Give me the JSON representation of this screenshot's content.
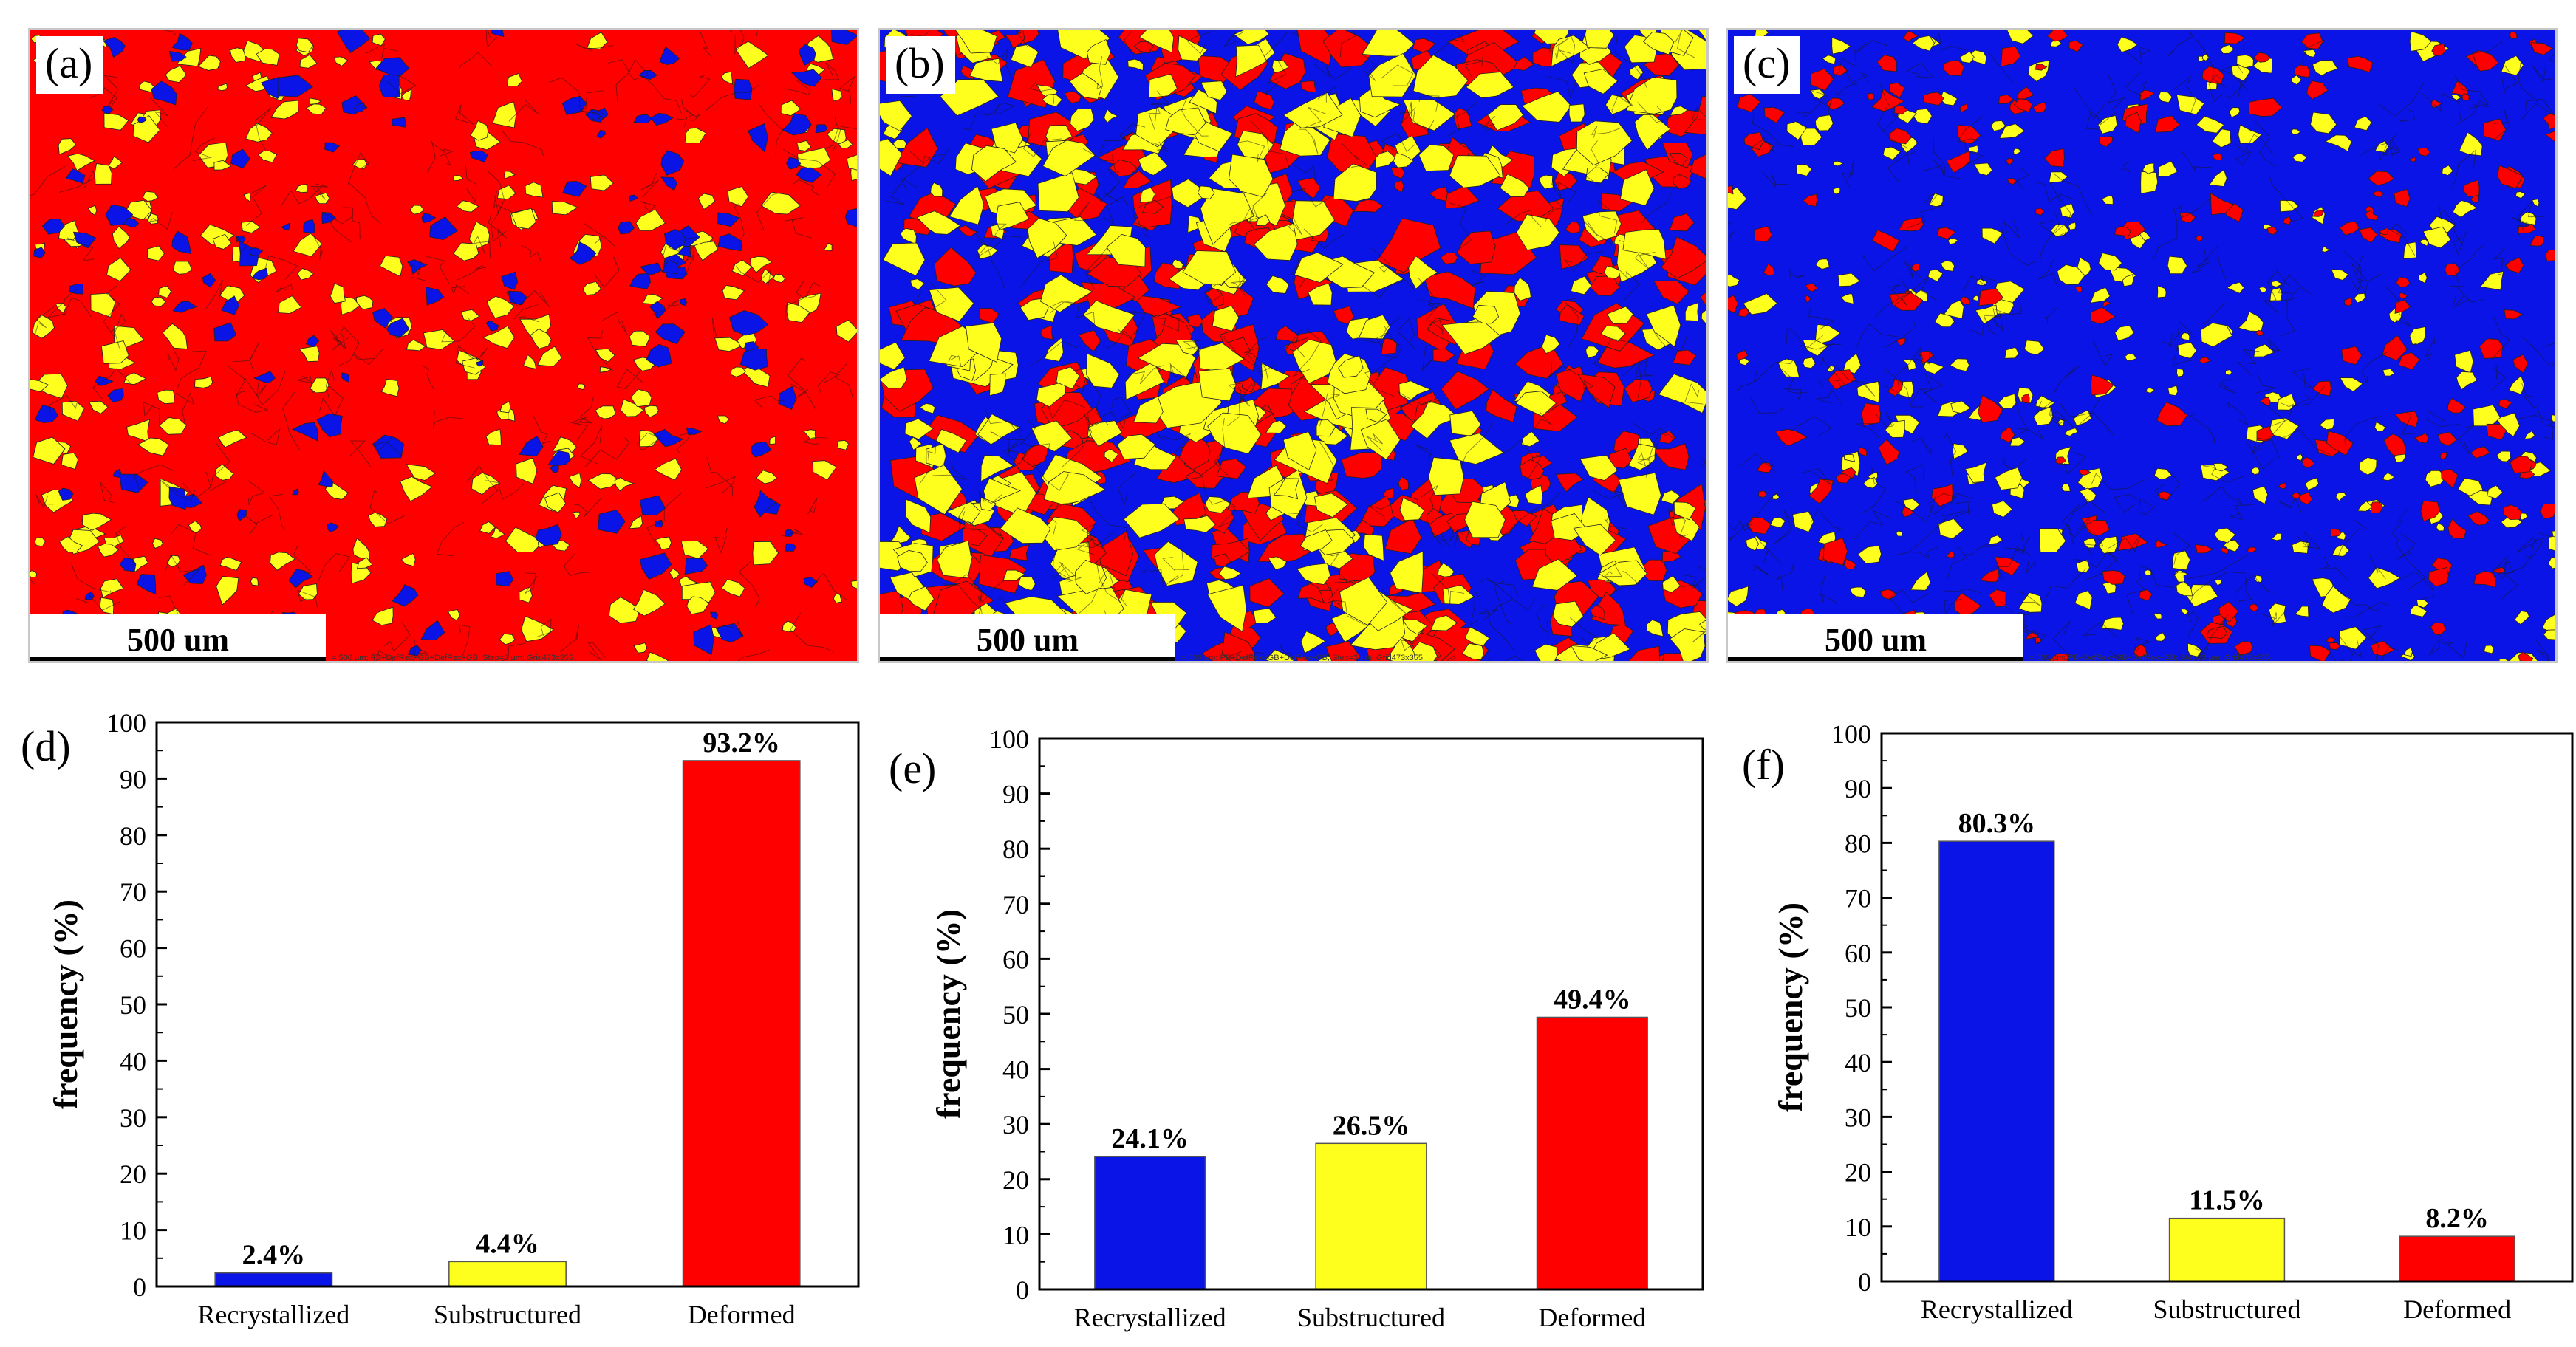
{
  "maps": [
    {
      "label": "(a)",
      "scale_label": "500 um",
      "caption": "= 500 µm; PB+DefRex+GB+DefRex+GB; Step=3 µm; Grid473x355"
    },
    {
      "label": "(b)",
      "scale_label": "500 um",
      "caption": "= 500 µm; PB+DefRex+GB+DefRex+GB; Step=3 µm; Grid473x355"
    },
    {
      "label": "(c)",
      "scale_label": "500 um",
      "caption": "= 500 µm; PB+DefRex+GB+DefRex+GB; Step=3 µm; Grid473x355"
    }
  ],
  "colors": {
    "recrystallized": "#0a14e6",
    "substructured": "#ffff1e",
    "deformed": "#ff0000"
  },
  "chart_data": [
    {
      "type": "bar",
      "label": "(d)",
      "categories": [
        "Recrystallized",
        "Substructured",
        "Deformed"
      ],
      "values": [
        2.4,
        4.4,
        93.2
      ],
      "value_labels": [
        "2.4%",
        "4.4%",
        "93.2%"
      ],
      "ylabel": "frequency (%)",
      "ylim": [
        0,
        100
      ],
      "yticks": [
        0,
        10,
        20,
        30,
        40,
        50,
        60,
        70,
        80,
        90,
        100
      ]
    },
    {
      "type": "bar",
      "label": "(e)",
      "categories": [
        "Recrystallized",
        "Substructured",
        "Deformed"
      ],
      "values": [
        24.1,
        26.5,
        49.4
      ],
      "value_labels": [
        "24.1%",
        "26.5%",
        "49.4%"
      ],
      "ylabel": "frequency (%)",
      "ylim": [
        0,
        100
      ],
      "yticks": [
        0,
        10,
        20,
        30,
        40,
        50,
        60,
        70,
        80,
        90,
        100
      ]
    },
    {
      "type": "bar",
      "label": "(f)",
      "categories": [
        "Recrystallized",
        "Substructured",
        "Deformed"
      ],
      "values": [
        80.3,
        11.5,
        8.2
      ],
      "value_labels": [
        "80.3%",
        "11.5%",
        "8.2%"
      ],
      "ylabel": "frequency (%)",
      "ylim": [
        0,
        100
      ],
      "yticks": [
        0,
        10,
        20,
        30,
        40,
        50,
        60,
        70,
        80,
        90,
        100
      ]
    }
  ]
}
